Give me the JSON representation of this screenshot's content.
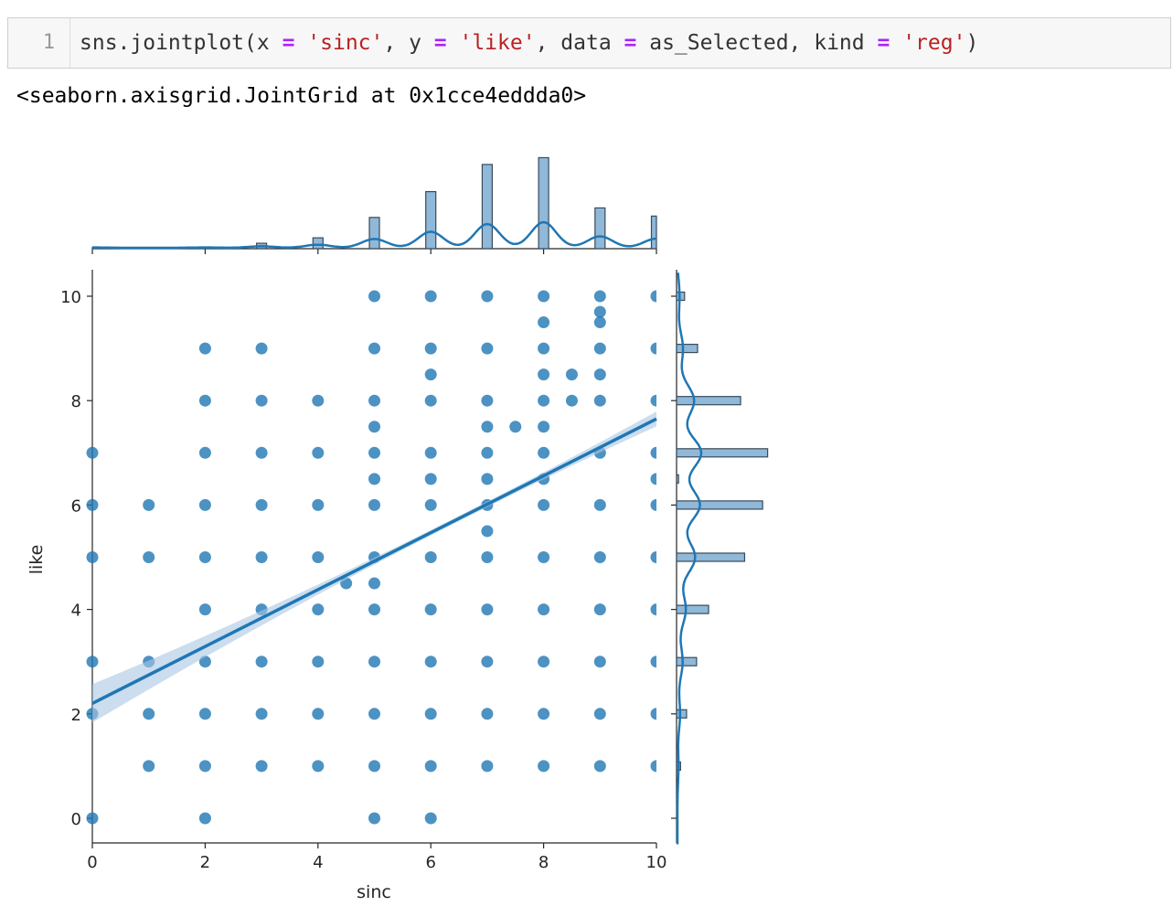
{
  "cell": {
    "prompt": "1",
    "code": {
      "t1": "sns.jointplot(x ",
      "op1": "=",
      "t2": " ",
      "s1": "'sinc'",
      "t3": ", y ",
      "op2": "=",
      "t4": " ",
      "s2": "'like'",
      "t5": ", data ",
      "op3": "=",
      "t6": " as_Selected, kind ",
      "op4": "=",
      "t7": " ",
      "s3": "'reg'",
      "t8": ")"
    },
    "output": "<seaborn.axisgrid.JointGrid at 0x1cce4eddda0>"
  },
  "colors": {
    "point": "#1f77b4",
    "hist_fill": "#8fb8d9",
    "hist_edge": "#3a4a5a",
    "line": "#1f77b4",
    "ci": "#a9c7e3"
  },
  "chart_data": {
    "type": "scatter",
    "xlabel": "sinc",
    "ylabel": "like",
    "xlim": [
      0,
      10
    ],
    "ylim": [
      -0.5,
      10.5
    ],
    "xticks": [
      0,
      2,
      4,
      6,
      8,
      10
    ],
    "yticks": [
      0,
      2,
      4,
      6,
      8,
      10
    ],
    "points": [
      [
        0,
        0
      ],
      [
        0,
        2
      ],
      [
        0,
        3
      ],
      [
        0,
        5
      ],
      [
        0,
        6
      ],
      [
        0,
        7
      ],
      [
        1,
        1
      ],
      [
        1,
        2
      ],
      [
        1,
        3
      ],
      [
        1,
        5
      ],
      [
        1,
        6
      ],
      [
        2,
        0
      ],
      [
        2,
        1
      ],
      [
        2,
        2
      ],
      [
        2,
        3
      ],
      [
        2,
        4
      ],
      [
        2,
        5
      ],
      [
        2,
        6
      ],
      [
        2,
        7
      ],
      [
        2,
        8
      ],
      [
        2,
        9
      ],
      [
        3,
        1
      ],
      [
        3,
        2
      ],
      [
        3,
        3
      ],
      [
        3,
        4
      ],
      [
        3,
        5
      ],
      [
        3,
        6
      ],
      [
        3,
        7
      ],
      [
        3,
        8
      ],
      [
        3,
        9
      ],
      [
        4,
        1
      ],
      [
        4,
        2
      ],
      [
        4,
        3
      ],
      [
        4,
        4
      ],
      [
        4,
        5
      ],
      [
        4,
        6
      ],
      [
        4,
        7
      ],
      [
        4,
        8
      ],
      [
        4.5,
        4.5
      ],
      [
        5,
        0
      ],
      [
        5,
        1
      ],
      [
        5,
        2
      ],
      [
        5,
        3
      ],
      [
        5,
        4
      ],
      [
        5,
        4.5
      ],
      [
        5,
        5
      ],
      [
        5,
        6
      ],
      [
        5,
        6.5
      ],
      [
        5,
        7
      ],
      [
        5,
        7.5
      ],
      [
        5,
        8
      ],
      [
        5,
        9
      ],
      [
        5,
        10
      ],
      [
        6,
        0
      ],
      [
        6,
        1
      ],
      [
        6,
        2
      ],
      [
        6,
        3
      ],
      [
        6,
        4
      ],
      [
        6,
        5
      ],
      [
        6,
        6
      ],
      [
        6,
        6.5
      ],
      [
        6,
        7
      ],
      [
        6,
        8
      ],
      [
        6,
        8.5
      ],
      [
        6,
        9
      ],
      [
        6,
        10
      ],
      [
        7,
        1
      ],
      [
        7,
        2
      ],
      [
        7,
        3
      ],
      [
        7,
        4
      ],
      [
        7,
        5
      ],
      [
        7,
        5.5
      ],
      [
        7,
        6
      ],
      [
        7,
        6.5
      ],
      [
        7,
        7
      ],
      [
        7,
        7.5
      ],
      [
        7,
        8
      ],
      [
        7,
        9
      ],
      [
        7,
        10
      ],
      [
        7.5,
        7.5
      ],
      [
        8,
        1
      ],
      [
        8,
        2
      ],
      [
        8,
        3
      ],
      [
        8,
        4
      ],
      [
        8,
        5
      ],
      [
        8,
        6
      ],
      [
        8,
        6.5
      ],
      [
        8,
        7
      ],
      [
        8,
        7.5
      ],
      [
        8,
        8
      ],
      [
        8,
        8.5
      ],
      [
        8,
        9
      ],
      [
        8,
        9.5
      ],
      [
        8,
        10
      ],
      [
        8.5,
        8
      ],
      [
        8.5,
        8.5
      ],
      [
        9,
        1
      ],
      [
        9,
        2
      ],
      [
        9,
        3
      ],
      [
        9,
        4
      ],
      [
        9,
        5
      ],
      [
        9,
        6
      ],
      [
        9,
        7
      ],
      [
        9,
        8
      ],
      [
        9,
        8.5
      ],
      [
        9,
        9
      ],
      [
        9,
        9.5
      ],
      [
        9,
        9.7
      ],
      [
        9,
        10
      ],
      [
        10,
        1
      ],
      [
        10,
        2
      ],
      [
        10,
        3
      ],
      [
        10,
        4
      ],
      [
        10,
        5
      ],
      [
        10,
        6
      ],
      [
        10,
        6.5
      ],
      [
        10,
        7
      ],
      [
        10,
        8
      ],
      [
        10,
        9
      ],
      [
        10,
        10
      ]
    ],
    "regression": {
      "intercept": 2.2,
      "slope": 0.545
    },
    "marginal_x": {
      "bins": [
        {
          "x": 0,
          "count": 1
        },
        {
          "x": 2,
          "count": 1
        },
        {
          "x": 3,
          "count": 4
        },
        {
          "x": 4,
          "count": 8
        },
        {
          "x": 5,
          "count": 23
        },
        {
          "x": 6,
          "count": 42
        },
        {
          "x": 7,
          "count": 62
        },
        {
          "x": 8,
          "count": 67
        },
        {
          "x": 9,
          "count": 30
        },
        {
          "x": 10,
          "count": 24
        }
      ],
      "max_count": 70
    },
    "marginal_y": {
      "bins": [
        {
          "y": 0,
          "count": 0
        },
        {
          "y": 1,
          "count": 4
        },
        {
          "y": 2,
          "count": 10
        },
        {
          "y": 3,
          "count": 20
        },
        {
          "y": 4,
          "count": 32
        },
        {
          "y": 5,
          "count": 68
        },
        {
          "y": 6,
          "count": 86
        },
        {
          "y": 6.5,
          "count": 2
        },
        {
          "y": 7,
          "count": 91
        },
        {
          "y": 8,
          "count": 64
        },
        {
          "y": 9,
          "count": 21
        },
        {
          "y": 10,
          "count": 8
        }
      ],
      "max_count": 95
    }
  }
}
